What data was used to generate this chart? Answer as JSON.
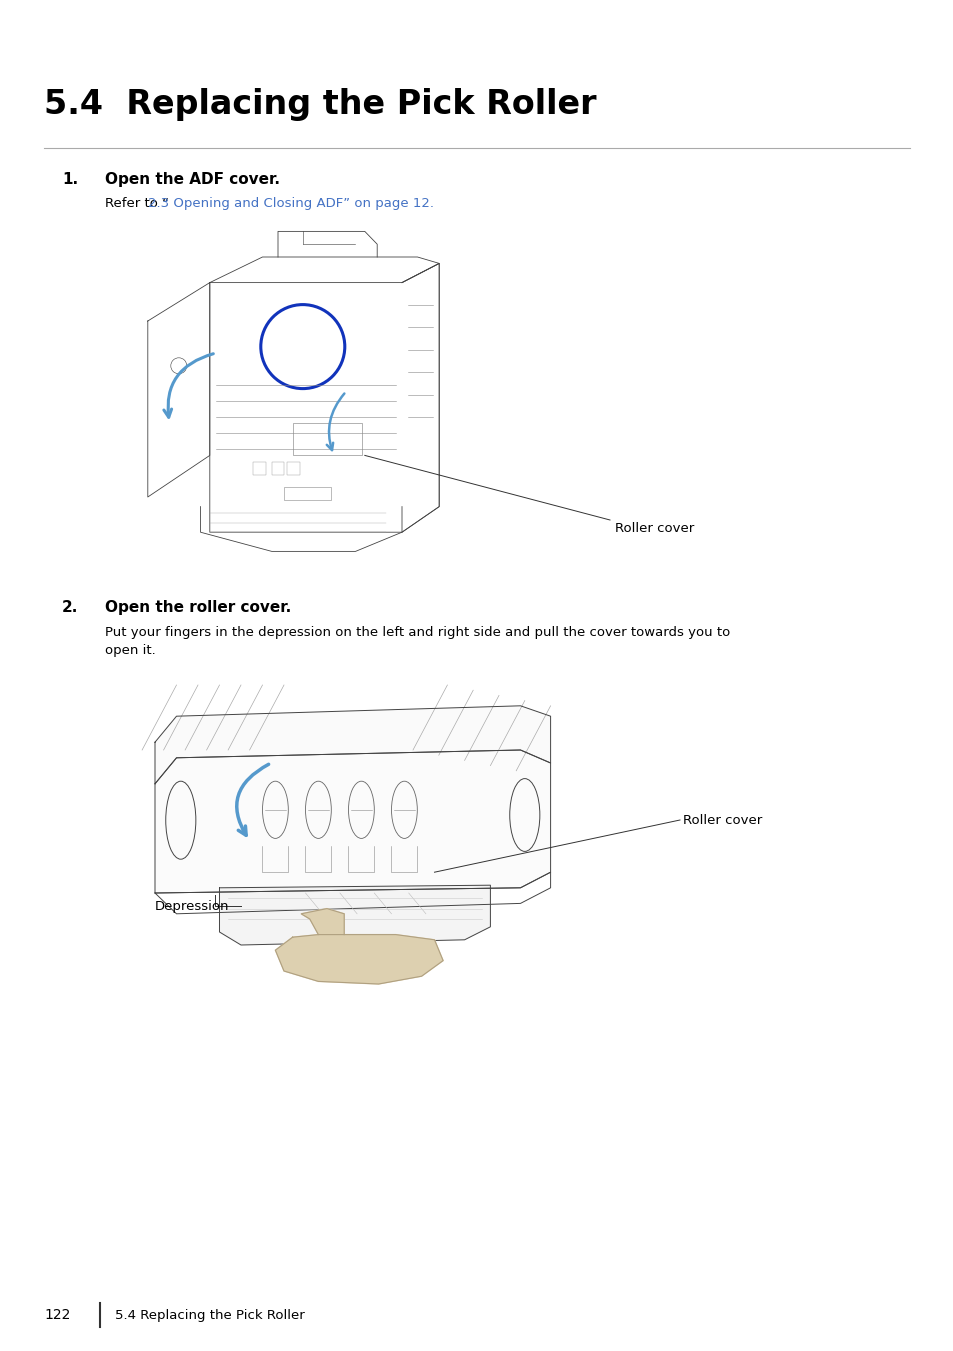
{
  "title": "5.4  Replacing the Pick Roller",
  "title_fontsize": 24,
  "step1_label": "1.",
  "step1_text": "Open the ADF cover.",
  "step1_ref_plain": "Refer to “",
  "step1_ref_link": "2.3 Opening and Closing ADF” on page 12.",
  "roller_cover_label1": "Roller cover",
  "step2_label": "2.",
  "step2_text": "Open the roller cover.",
  "step2_desc": "Put your fingers in the depression on the left and right side and pull the cover towards you to\nopen it.",
  "roller_cover_label2": "Roller cover",
  "depression_label": "Depression",
  "footer_page": "122",
  "footer_text": "5.4 Replacing the Pick Roller",
  "bg_color": "#ffffff",
  "text_color": "#000000",
  "link_color": "#4472C4",
  "line_color": "#333333",
  "border_color": "#999999",
  "blue_arrow_color": "#5599CC",
  "hand_color": "#DDD0B0",
  "hand_edge_color": "#B0A080"
}
